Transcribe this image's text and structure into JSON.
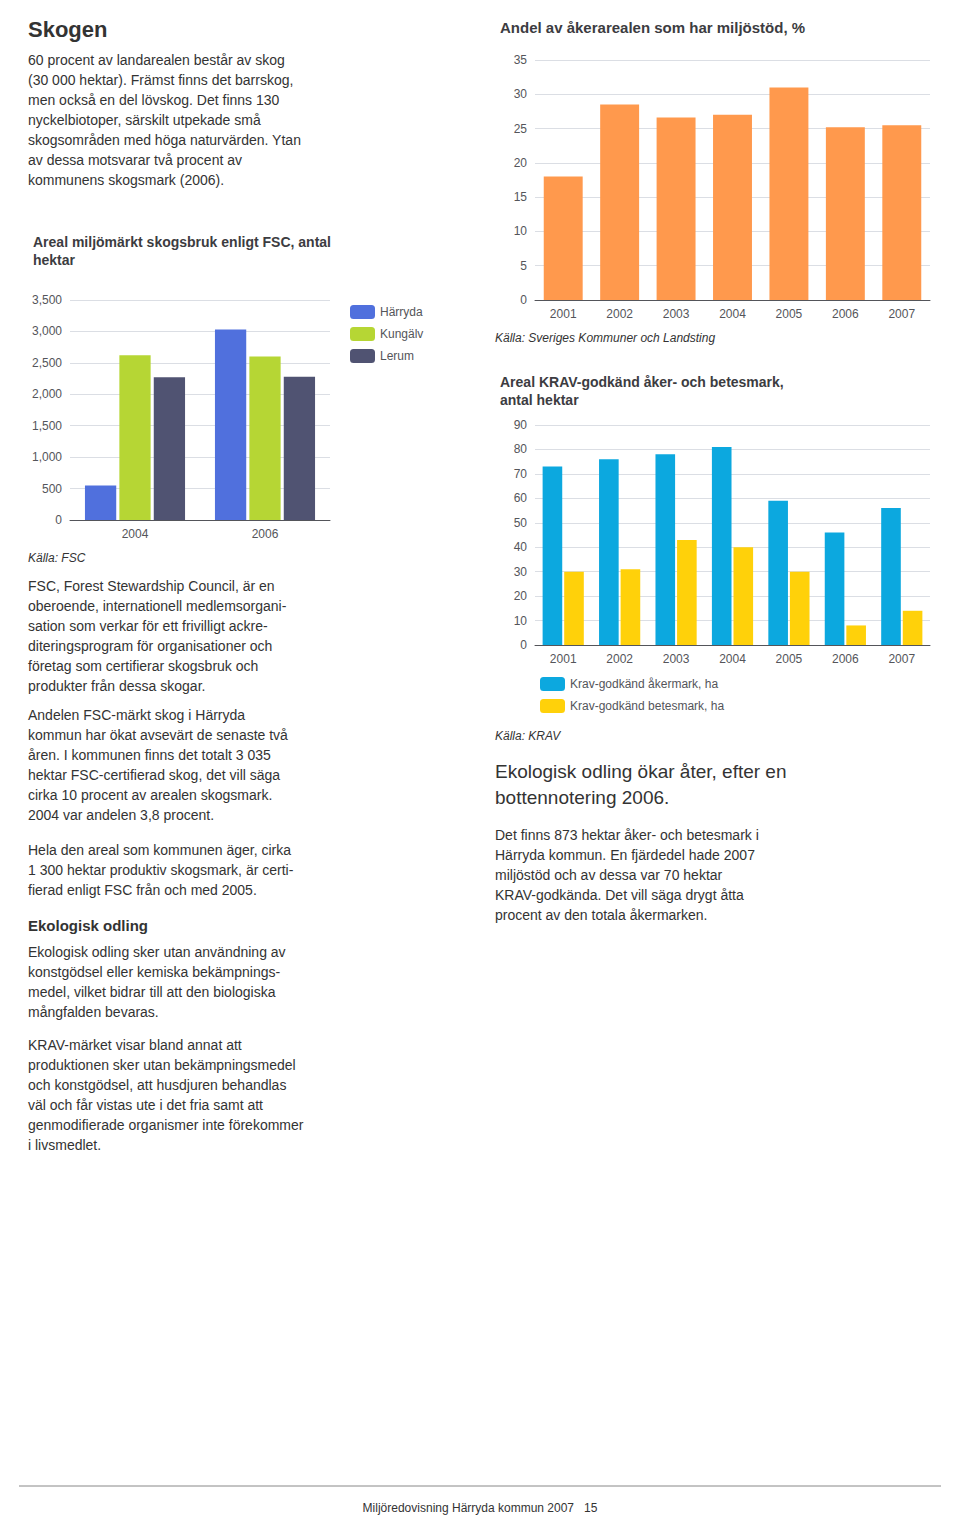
{
  "chart_data": [
    {
      "type": "bar",
      "title": "Areal miljömärkt skogsbruk enligt FSC, antal\nhektar",
      "categories": [
        "2004",
        "2006"
      ],
      "series": [
        {
          "name": "Härryda",
          "values": [
            550,
            3030
          ]
        },
        {
          "name": "Kungälv",
          "values": [
            2620,
            2600
          ]
        },
        {
          "name": "Lerum",
          "values": [
            2270,
            2280
          ]
        }
      ],
      "ylim": [
        0,
        3500
      ],
      "yticks": [
        0,
        500,
        1000,
        1500,
        2000,
        2500,
        3000,
        3500
      ],
      "grid": true,
      "legend": "right",
      "annotations": [
        "Skogen",
        "60 procent av landarealen består av skog\n(30 000 hektar). Främst finns det barrskog,\nmen också en del lövskog. Det finns 130\nnyckelbiotoper, särskilt utpekade små\nskogsområden med höga naturvärden. Ytan\nav dessa motsvarar två procent av\nkommunens skogsmark (2006).",
        "Källa: FSC",
        "FSC, Forest Stewardship Council, är en\noberoende, internationell medlemsorgani-\nsation som verkar för ett frivilligt ackre-\nditeringsprogram för organisationer och\nföretag som certifierar skogsbruk och\nprodukter från dessa skogar.",
        "Andelen FSC-märkt skog i Härryda\nkommun har ökat avsevärt de senaste två\nåren. I kommunen finns det totalt 3 035\nhektar FSC-certifierad skog, det vill säga\ncirka 10 procent av arealen skogsmark.\n2004 var andelen 3,8 procent.",
        "Hela den areal som kommunen äger, cirka\n1 300 hektar produktiv skogsmark, är certi-\nfierad enligt FSC från och med 2005.",
        "Ekologisk odling",
        "Ekologisk odling sker utan användning av\nkonstgödsel eller kemiska bekämpnings-\nmedel, vilket bidrar till att den biologiska\nmångfalden bevaras.",
        "KRAV-märket visar bland annat att\nproduktionen sker utan bekämpningsmedel\noch konstgödsel, att husdjuren behandlas\nväl och får vistas ute i det fria samt att\ngenmodifierade organismer inte förekommer\ni livsmedlet."
      ]
    },
    {
      "type": "bar",
      "title": "Andel av åkerarealen som har miljöstöd, %",
      "categories": [
        "2001",
        "2002",
        "2003",
        "2004",
        "2005",
        "2006",
        "2007"
      ],
      "values": [
        18.0,
        28.5,
        26.6,
        27.0,
        31.0,
        25.2,
        25.5
      ],
      "ylim": [
        0,
        35
      ],
      "yticks": [
        0,
        5,
        10,
        15,
        20,
        25,
        30,
        35
      ],
      "grid": true,
      "annotations": [
        "Källa: Sveriges Kommuner och Landsting"
      ]
    },
    {
      "type": "bar",
      "title": "Areal KRAV-godkänd åker- och betesmark,\nantal hektar",
      "categories": [
        "2001",
        "2002",
        "2003",
        "2004",
        "2005",
        "2006",
        "2007"
      ],
      "series": [
        {
          "name": "Krav-godkänd åkermark, ha",
          "values": [
            73,
            76,
            78,
            81,
            59,
            46,
            56
          ]
        },
        {
          "name": "Krav-godkänd betesmark, ha",
          "values": [
            30,
            31,
            43,
            40,
            30,
            8,
            14
          ]
        }
      ],
      "ylim": [
        0,
        90
      ],
      "yticks": [
        0,
        10,
        20,
        30,
        40,
        50,
        60,
        70,
        80,
        90
      ],
      "grid": true,
      "legend": "bottom",
      "annotations": [
        "Källa: KRAV",
        "Ekologisk odling ökar åter, efter en\nbottennotering 2006.",
        "Det finns 873 hektar åker- och betesmark i\nHärryda kommun. En fjärdedel hade 2007\nmiljöstöd och av dessa var 70 hektar\nKRAV-godkända. Det vill säga drygt åtta\nprocent av den totala åkermarken.",
        "Miljöredovisning Härryda kommun 2007   15"
      ]
    }
  ]
}
